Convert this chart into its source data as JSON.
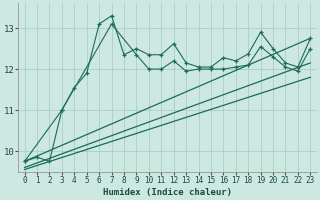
{
  "xlabel": "Humidex (Indice chaleur)",
  "bg_color": "#cce8e0",
  "grid_color": "#aacec6",
  "line_color": "#1a6b5a",
  "xlim": [
    -0.5,
    23.5
  ],
  "ylim": [
    9.5,
    13.6
  ],
  "yticks": [
    10,
    11,
    12,
    13
  ],
  "xticks": [
    0,
    1,
    2,
    3,
    4,
    5,
    6,
    7,
    8,
    9,
    10,
    11,
    12,
    13,
    14,
    15,
    16,
    17,
    18,
    19,
    20,
    21,
    22,
    23
  ],
  "series1_x": [
    0,
    1,
    2,
    3,
    4,
    5,
    6,
    7,
    8,
    9,
    10,
    11,
    12,
    13,
    14,
    15,
    16,
    17,
    18,
    19,
    20,
    21,
    22,
    23
  ],
  "series1_y": [
    9.75,
    9.85,
    9.75,
    11.0,
    11.55,
    11.9,
    13.1,
    13.3,
    12.35,
    12.5,
    12.35,
    12.35,
    12.62,
    12.15,
    12.05,
    12.05,
    12.28,
    12.2,
    12.37,
    12.9,
    12.5,
    12.15,
    12.05,
    12.75
  ],
  "series2_x": [
    0,
    3,
    7,
    9,
    10,
    11,
    12,
    13,
    14,
    15,
    16,
    17,
    18,
    19,
    20,
    21,
    22,
    23
  ],
  "series2_y": [
    9.75,
    11.0,
    13.1,
    12.35,
    12.0,
    12.0,
    12.2,
    11.95,
    12.0,
    12.0,
    12.0,
    12.05,
    12.1,
    12.55,
    12.3,
    12.05,
    11.95,
    12.5
  ],
  "series3_x": [
    0,
    23
  ],
  "series3_y": [
    9.75,
    12.75
  ],
  "series4_x": [
    0,
    23
  ],
  "series4_y": [
    9.6,
    12.15
  ],
  "series5_x": [
    0,
    23
  ],
  "series5_y": [
    9.55,
    11.8
  ]
}
